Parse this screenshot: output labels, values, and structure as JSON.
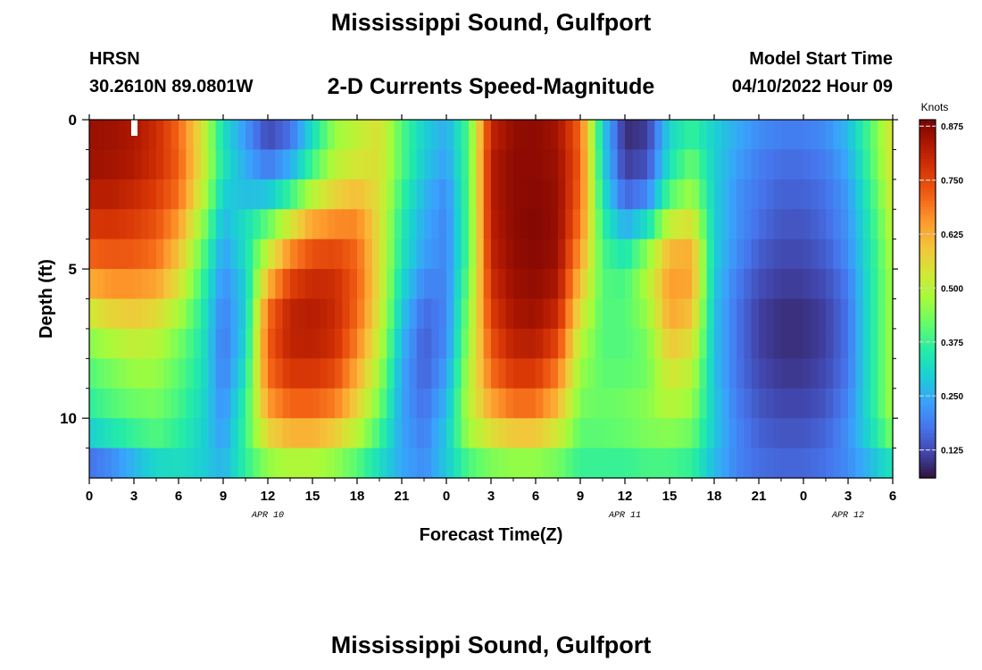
{
  "title": "Mississippi Sound, Gulfport",
  "footer_title": "Mississippi Sound, Gulfport",
  "station": "HRSN",
  "coordinates": "30.2610N  89.0801W",
  "model_start_label": "Model Start Time",
  "model_start_value": "04/10/2022 Hour 09",
  "chart_data": {
    "type": "heatmap",
    "title": "2-D Currents Speed-Magnitude",
    "xlabel": "Forecast Time(Z)",
    "ylabel": "Depth (ft)",
    "x_range_hours": [
      0,
      54
    ],
    "ylim": [
      0,
      12
    ],
    "y_inverted": true,
    "y_ticks": [
      0,
      5,
      10
    ],
    "x_tick_labels": [
      "0",
      "3",
      "6",
      "9",
      "12",
      "15",
      "18",
      "21",
      "0",
      "3",
      "6",
      "9",
      "12",
      "15",
      "18",
      "21",
      "0",
      "3",
      "6"
    ],
    "date_labels": [
      {
        "text": "APR 10",
        "hour": 12
      },
      {
        "text": "APR 11",
        "hour": 36
      },
      {
        "text": "APR 12",
        "hour": 51
      }
    ],
    "colorbar": {
      "label": "Knots",
      "min": 0.06,
      "max": 0.89,
      "ticks": [
        "0.125",
        "0.250",
        "0.375",
        "0.500",
        "0.625",
        "0.750",
        "0.875"
      ],
      "tick_values": [
        0.125,
        0.25,
        0.375,
        0.5,
        0.625,
        0.75,
        0.875
      ]
    },
    "colors": [
      "#30123b",
      "#4145ab",
      "#4675ed",
      "#39a2fc",
      "#1bcfd4",
      "#24eca6",
      "#61fc6c",
      "#a4fc3b",
      "#d1e834",
      "#f3c63a",
      "#fe9b2d",
      "#f36315",
      "#d93806",
      "#b11901",
      "#7a0402"
    ],
    "depths_ft": [
      0,
      1,
      2,
      3,
      4,
      5,
      6,
      7,
      8,
      9,
      10,
      11,
      12
    ],
    "hours": [
      0,
      1.5,
      3,
      4.5,
      6,
      7.5,
      9,
      10.5,
      12,
      13.5,
      15,
      16.5,
      18,
      19.5,
      21,
      22.5,
      24,
      25.5,
      27,
      28.5,
      30,
      31.5,
      33,
      34.5,
      36,
      37.5,
      39,
      40.5,
      42,
      43.5,
      45,
      46.5,
      48,
      49.5,
      51,
      52.5,
      54
    ],
    "speed_knots": [
      [
        0.85,
        0.85,
        0.83,
        0.79,
        0.7,
        0.55,
        0.3,
        0.2,
        0.1,
        0.15,
        0.3,
        0.45,
        0.5,
        0.55,
        0.4,
        0.3,
        0.25,
        0.4,
        0.8,
        0.86,
        0.87,
        0.84,
        0.7,
        0.3,
        0.08,
        0.1,
        0.3,
        0.35,
        0.3,
        0.25,
        0.22,
        0.2,
        0.2,
        0.22,
        0.28,
        0.4,
        0.55
      ],
      [
        0.86,
        0.85,
        0.84,
        0.8,
        0.72,
        0.55,
        0.35,
        0.25,
        0.15,
        0.2,
        0.35,
        0.48,
        0.52,
        0.55,
        0.4,
        0.3,
        0.25,
        0.4,
        0.82,
        0.87,
        0.87,
        0.85,
        0.72,
        0.3,
        0.1,
        0.12,
        0.32,
        0.4,
        0.3,
        0.25,
        0.2,
        0.18,
        0.18,
        0.2,
        0.26,
        0.4,
        0.55
      ],
      [
        0.84,
        0.84,
        0.82,
        0.78,
        0.72,
        0.55,
        0.32,
        0.25,
        0.22,
        0.3,
        0.42,
        0.52,
        0.56,
        0.55,
        0.4,
        0.28,
        0.22,
        0.4,
        0.83,
        0.87,
        0.87,
        0.86,
        0.72,
        0.32,
        0.12,
        0.15,
        0.35,
        0.45,
        0.3,
        0.22,
        0.18,
        0.16,
        0.16,
        0.18,
        0.24,
        0.38,
        0.55
      ],
      [
        0.8,
        0.8,
        0.78,
        0.75,
        0.68,
        0.5,
        0.28,
        0.3,
        0.35,
        0.45,
        0.58,
        0.62,
        0.65,
        0.55,
        0.35,
        0.25,
        0.2,
        0.4,
        0.82,
        0.87,
        0.88,
        0.86,
        0.7,
        0.35,
        0.2,
        0.25,
        0.45,
        0.5,
        0.3,
        0.22,
        0.18,
        0.15,
        0.15,
        0.17,
        0.22,
        0.36,
        0.52
      ],
      [
        0.75,
        0.76,
        0.75,
        0.72,
        0.62,
        0.45,
        0.25,
        0.35,
        0.48,
        0.62,
        0.7,
        0.72,
        0.7,
        0.55,
        0.35,
        0.25,
        0.2,
        0.4,
        0.82,
        0.87,
        0.88,
        0.86,
        0.68,
        0.38,
        0.3,
        0.4,
        0.58,
        0.6,
        0.3,
        0.22,
        0.16,
        0.13,
        0.13,
        0.16,
        0.22,
        0.35,
        0.5
      ],
      [
        0.68,
        0.7,
        0.7,
        0.68,
        0.58,
        0.4,
        0.22,
        0.3,
        0.55,
        0.72,
        0.78,
        0.78,
        0.72,
        0.55,
        0.33,
        0.22,
        0.2,
        0.4,
        0.8,
        0.86,
        0.87,
        0.85,
        0.62,
        0.4,
        0.38,
        0.5,
        0.65,
        0.65,
        0.3,
        0.2,
        0.14,
        0.12,
        0.12,
        0.14,
        0.2,
        0.34,
        0.48
      ],
      [
        0.58,
        0.62,
        0.62,
        0.6,
        0.52,
        0.38,
        0.2,
        0.3,
        0.68,
        0.8,
        0.82,
        0.8,
        0.72,
        0.55,
        0.3,
        0.18,
        0.2,
        0.45,
        0.78,
        0.85,
        0.86,
        0.82,
        0.58,
        0.4,
        0.4,
        0.48,
        0.65,
        0.62,
        0.28,
        0.18,
        0.12,
        0.1,
        0.1,
        0.12,
        0.18,
        0.34,
        0.48
      ],
      [
        0.48,
        0.52,
        0.55,
        0.52,
        0.45,
        0.35,
        0.18,
        0.3,
        0.72,
        0.82,
        0.83,
        0.8,
        0.7,
        0.52,
        0.28,
        0.15,
        0.2,
        0.45,
        0.75,
        0.83,
        0.84,
        0.78,
        0.52,
        0.4,
        0.4,
        0.45,
        0.62,
        0.58,
        0.28,
        0.18,
        0.11,
        0.09,
        0.09,
        0.11,
        0.18,
        0.34,
        0.48
      ],
      [
        0.42,
        0.45,
        0.48,
        0.48,
        0.42,
        0.35,
        0.18,
        0.32,
        0.72,
        0.8,
        0.8,
        0.78,
        0.66,
        0.5,
        0.25,
        0.15,
        0.22,
        0.48,
        0.72,
        0.8,
        0.8,
        0.72,
        0.48,
        0.4,
        0.4,
        0.42,
        0.56,
        0.52,
        0.28,
        0.18,
        0.12,
        0.1,
        0.1,
        0.12,
        0.18,
        0.34,
        0.48
      ],
      [
        0.38,
        0.42,
        0.45,
        0.45,
        0.4,
        0.33,
        0.2,
        0.35,
        0.68,
        0.75,
        0.75,
        0.72,
        0.6,
        0.45,
        0.24,
        0.16,
        0.25,
        0.5,
        0.68,
        0.74,
        0.74,
        0.65,
        0.45,
        0.42,
        0.42,
        0.44,
        0.52,
        0.48,
        0.28,
        0.18,
        0.13,
        0.11,
        0.11,
        0.13,
        0.19,
        0.34,
        0.48
      ],
      [
        0.35,
        0.38,
        0.4,
        0.42,
        0.38,
        0.32,
        0.22,
        0.38,
        0.62,
        0.68,
        0.68,
        0.65,
        0.55,
        0.42,
        0.24,
        0.18,
        0.28,
        0.5,
        0.6,
        0.66,
        0.66,
        0.58,
        0.42,
        0.42,
        0.44,
        0.46,
        0.48,
        0.45,
        0.3,
        0.2,
        0.15,
        0.13,
        0.13,
        0.15,
        0.21,
        0.34,
        0.48
      ],
      [
        0.25,
        0.3,
        0.35,
        0.38,
        0.35,
        0.3,
        0.24,
        0.38,
        0.52,
        0.56,
        0.56,
        0.52,
        0.45,
        0.35,
        0.24,
        0.2,
        0.3,
        0.45,
        0.5,
        0.52,
        0.52,
        0.48,
        0.4,
        0.4,
        0.4,
        0.42,
        0.42,
        0.4,
        0.28,
        0.2,
        0.16,
        0.15,
        0.15,
        0.17,
        0.22,
        0.3,
        0.4
      ],
      [
        0.1,
        0.12,
        0.18,
        0.25,
        0.3,
        0.3,
        0.28,
        0.35,
        0.4,
        0.42,
        0.42,
        0.4,
        0.36,
        0.3,
        0.25,
        0.22,
        0.28,
        0.34,
        0.38,
        0.4,
        0.4,
        0.38,
        0.35,
        0.35,
        0.35,
        0.36,
        0.36,
        0.34,
        0.26,
        0.2,
        0.18,
        0.17,
        0.17,
        0.18,
        0.2,
        0.24,
        0.28
      ]
    ]
  }
}
